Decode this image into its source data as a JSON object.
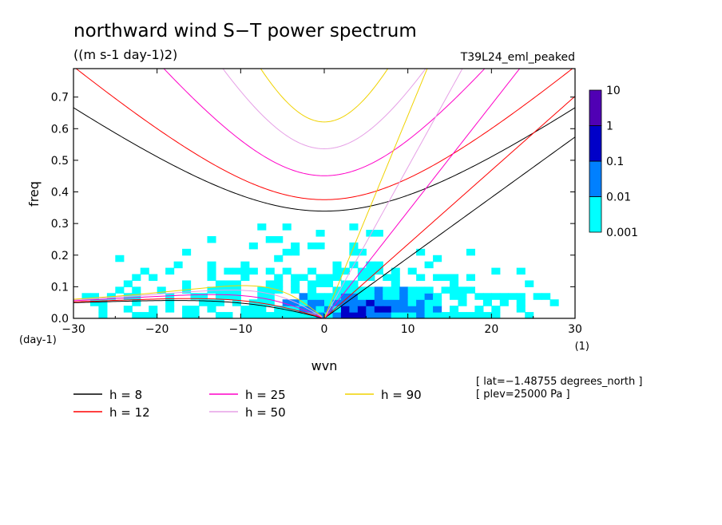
{
  "chart_data": {
    "type": "heatmap",
    "title": "northward wind S−T power spectrum",
    "units": "((m s-1 day-1)2)",
    "run_label": "T39L24_eml_peaked",
    "xlabel": "wvn",
    "ylabel": "freq",
    "x_unit": "(1)",
    "y_unit": "(day-1)",
    "xlim": [
      -30,
      30
    ],
    "ylim": [
      0,
      0.79
    ],
    "xticks": [
      -30,
      -20,
      -10,
      0,
      10,
      20,
      30
    ],
    "yticks": [
      0.0,
      0.1,
      0.2,
      0.3,
      0.4,
      0.5,
      0.6,
      0.7
    ],
    "xtick_labels": [
      "−30",
      "−20",
      "−10",
      "0",
      "10",
      "20",
      "30"
    ],
    "ytick_labels": [
      "0.0",
      "0.1",
      "0.2",
      "0.3",
      "0.4",
      "0.5",
      "0.6",
      "0.7"
    ],
    "colorbar": {
      "levels": [
        0.001,
        0.01,
        0.1,
        1,
        10
      ],
      "labels": [
        "0.001",
        "0.01",
        "0.1",
        "1",
        "10"
      ],
      "colors": [
        "#00ffff",
        "#0080ff",
        "#0000c8",
        "#5000b4"
      ],
      "scale": "log"
    },
    "dispersion_curves": [
      {
        "label": "h = 8",
        "h": 8,
        "color": "#000000"
      },
      {
        "label": "h = 12",
        "h": 12,
        "color": "#ff0000"
      },
      {
        "label": "h = 25",
        "h": 25,
        "color": "#ff00c8"
      },
      {
        "label": "h = 50",
        "h": 50,
        "color": "#e6a0e6"
      },
      {
        "label": "h = 90",
        "h": 90,
        "color": "#f0d200"
      }
    ],
    "annotations": [
      "[ lat=−1.48755 degrees_north ]",
      "[ plev=25000 Pa ]"
    ]
  }
}
